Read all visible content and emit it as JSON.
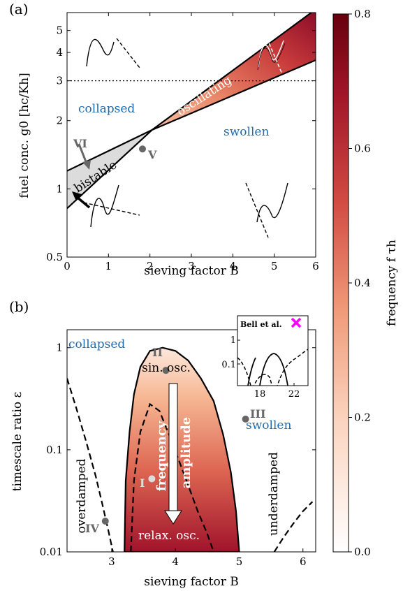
{
  "panel_a": {
    "label": "(a)",
    "labels": {
      "collapsed": "collapsed",
      "swollen": "swollen",
      "oscillating": "oscillating",
      "bistable": "bistable",
      "vi": "VI",
      "v": "V"
    }
  },
  "panel_b": {
    "label": "(b)",
    "labels": {
      "collapsed": "collapsed",
      "swollen": "swollen",
      "overdamped": "overdamped",
      "underdamped": "underdamped",
      "sin_osc": "sin. osc.",
      "relax_osc": "relax. osc.",
      "frequency": "frequency",
      "amplitude": "amplitude",
      "i": "I",
      "ii": "II",
      "iii": "III",
      "iv": "IV"
    },
    "inset": {
      "title": "Bell et al."
    }
  },
  "colorbar": {
    "label": "frequency f τh",
    "ticks": [
      "0.0",
      "0.2",
      "0.4",
      "0.6",
      "0.8"
    ],
    "range": [
      0,
      0.8
    ],
    "colors": [
      "#ffffff",
      "#f7c4a5",
      "#e47a5e",
      "#c03a3c",
      "#8a0d26",
      "#67000d"
    ]
  },
  "chart_data": [
    {
      "type": "area",
      "panel": "(a)",
      "xlabel": "sieving factor B",
      "ylabel": "fuel conc. g0 [hc/Kh]",
      "xlim": [
        0,
        6
      ],
      "ylim": [
        0.5,
        6
      ],
      "yscale": "log",
      "x_ticks": [
        "0",
        "1",
        "2",
        "3",
        "4",
        "5",
        "6"
      ],
      "y_ticks": [
        "0.5",
        "1",
        "2",
        "3",
        "4",
        "5"
      ],
      "y_tick_values": [
        0.5,
        1,
        2,
        3,
        4,
        5
      ],
      "hline_y": 3,
      "boundaries": {
        "bistable_upper": {
          "x": [
            0,
            2.05
          ],
          "y": [
            1.2,
            1.82
          ]
        },
        "bistable_lower": {
          "x": [
            0,
            2.05
          ],
          "y": [
            0.82,
            1.82
          ]
        },
        "oscillating_upper": {
          "x": [
            2.05,
            6
          ],
          "y": [
            1.82,
            6.2
          ]
        },
        "oscillating_lower": {
          "x": [
            2.05,
            6
          ],
          "y": [
            1.82,
            3.7
          ]
        }
      },
      "points": [
        {
          "label": "V",
          "x": 1.82,
          "y": 1.5
        }
      ]
    },
    {
      "type": "area",
      "panel": "(b)",
      "xlabel": "sieving factor B",
      "ylabel": "timescale ratio ε",
      "xlim": [
        2.3,
        6.2
      ],
      "ylim": [
        0.01,
        1.5
      ],
      "yscale": "log",
      "x_ticks": [
        "3",
        "4",
        "5",
        "6"
      ],
      "x_tick_values": [
        3,
        4,
        5,
        6
      ],
      "y_ticks": [
        "0.01",
        "0.1",
        "1"
      ],
      "y_tick_values": [
        0.01,
        0.1,
        1
      ],
      "oscillating_boundary": {
        "x": [
          3.2,
          3.22,
          3.28,
          3.35,
          3.45,
          3.6,
          3.8,
          4.0,
          4.2,
          4.4,
          4.6,
          4.75,
          4.87,
          4.95,
          5.0
        ],
        "y": [
          0.01,
          0.05,
          0.15,
          0.35,
          0.65,
          0.93,
          1.0,
          0.93,
          0.75,
          0.5,
          0.3,
          0.14,
          0.06,
          0.025,
          0.01
        ]
      },
      "dashed_left": {
        "x": [
          2.3,
          2.45,
          2.6,
          2.75,
          2.85,
          2.95,
          3.02
        ],
        "y": [
          0.5,
          0.25,
          0.12,
          0.055,
          0.03,
          0.016,
          0.01
        ]
      },
      "dashed_center": {
        "x": [
          3.3,
          3.35,
          3.45,
          3.6,
          3.75,
          3.9,
          4.05,
          4.2,
          4.35,
          4.5,
          4.6
        ],
        "y": [
          0.01,
          0.05,
          0.15,
          0.28,
          0.24,
          0.14,
          0.08,
          0.045,
          0.025,
          0.015,
          0.01
        ]
      },
      "dashed_right": {
        "x": [
          5.55,
          5.7,
          5.85,
          6.0,
          6.15
        ],
        "y": [
          0.01,
          0.014,
          0.019,
          0.025,
          0.031
        ]
      },
      "points": [
        {
          "label": "II",
          "x": 3.85,
          "y": 0.6
        },
        {
          "label": "III",
          "x": 5.1,
          "y": 0.2
        },
        {
          "label": "I",
          "x": 3.63,
          "y": 0.052
        },
        {
          "label": "IV",
          "x": 2.9,
          "y": 0.02
        }
      ],
      "inset": {
        "title": "Bell et al.",
        "x_ticks": [
          "18",
          "22"
        ],
        "y_ticks": [
          "1",
          "0.1"
        ]
      }
    }
  ]
}
